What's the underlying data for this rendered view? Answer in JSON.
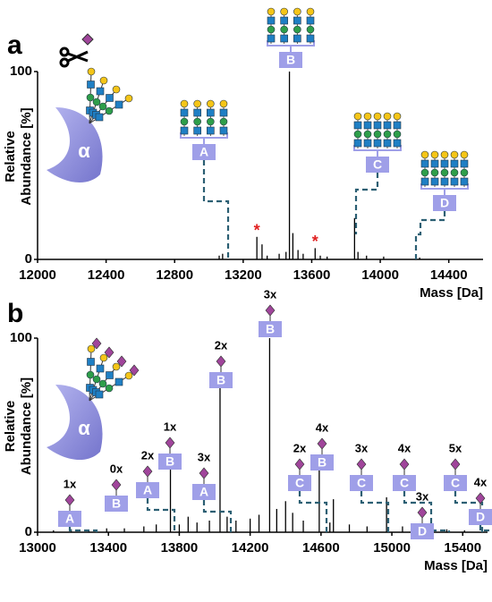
{
  "chart_data": [
    {
      "type": "spectrum",
      "panel": "a",
      "protein": "α",
      "x": [
        13060,
        13080,
        13280,
        13310,
        13340,
        13410,
        13450,
        13470,
        13490,
        13520,
        13550,
        13620,
        13650,
        13690,
        13850,
        13870,
        13920,
        14020,
        14230
      ],
      "values": [
        2,
        3,
        12,
        8,
        2,
        3,
        4,
        100,
        14,
        5,
        3,
        6,
        2,
        1.5,
        22,
        4,
        2,
        1.5,
        1
      ],
      "color": "#000000",
      "xlim": [
        12000,
        14600
      ],
      "ylim": [
        0,
        100
      ],
      "xticks": [
        12000,
        12400,
        12800,
        13200,
        13600,
        14000,
        14400
      ],
      "yticks": [
        0,
        100
      ],
      "xlabel": "Mass [Da]",
      "ylabel": [
        "Relative",
        "Abundance [%]"
      ],
      "annotations": [
        {
          "text": "*",
          "x": 13280
        },
        {
          "text": "*",
          "x": 13620
        }
      ],
      "glycoforms": [
        {
          "glycan": "A"
        },
        {
          "glycan": "B"
        },
        {
          "glycan": "C"
        },
        {
          "glycan": "D"
        }
      ]
    },
    {
      "type": "spectrum",
      "panel": "b",
      "protein": "α",
      "x": [
        13090,
        13190,
        13290,
        13390,
        13490,
        13600,
        13670,
        13750,
        13800,
        13850,
        13900,
        13970,
        14030,
        14070,
        14120,
        14200,
        14250,
        14310,
        14350,
        14400,
        14440,
        14500,
        14590,
        14650,
        14670,
        14760,
        14860,
        14970,
        15060,
        15180,
        15310,
        15410
      ],
      "values": [
        1,
        1.5,
        1,
        2,
        2,
        3,
        4,
        35,
        4,
        8,
        5,
        6,
        81,
        8,
        6,
        7,
        9,
        100,
        12,
        16,
        10,
        6,
        37,
        5,
        17,
        4,
        3,
        18,
        3,
        2,
        1.5,
        1
      ],
      "color": "#000000",
      "xlim": [
        13000,
        15540
      ],
      "ylim": [
        0,
        100
      ],
      "xticks": [
        13000,
        13400,
        13800,
        14200,
        14600,
        15000,
        15400
      ],
      "yticks": [
        0,
        100
      ],
      "xlabel": "Mass [Da]",
      "ylabel": [
        "Relative",
        "Abundance [%]"
      ],
      "glycoforms": [
        {
          "count": "1x",
          "glycan": "A"
        },
        {
          "count": "0x",
          "glycan": "B"
        },
        {
          "count": "2x",
          "glycan": "A"
        },
        {
          "count": "1x",
          "glycan": "B"
        },
        {
          "count": "3x",
          "glycan": "A"
        },
        {
          "count": "2x",
          "glycan": "B"
        },
        {
          "count": "3x",
          "glycan": "B"
        },
        {
          "count": "2x",
          "glycan": "C"
        },
        {
          "count": "4x",
          "glycan": "B"
        },
        {
          "count": "3x",
          "glycan": "C"
        },
        {
          "count": "4x",
          "glycan": "C"
        },
        {
          "count": "3x",
          "glycan": "D"
        },
        {
          "count": "5x",
          "glycan": "C"
        },
        {
          "count": "4x",
          "glycan": "D"
        }
      ]
    }
  ]
}
